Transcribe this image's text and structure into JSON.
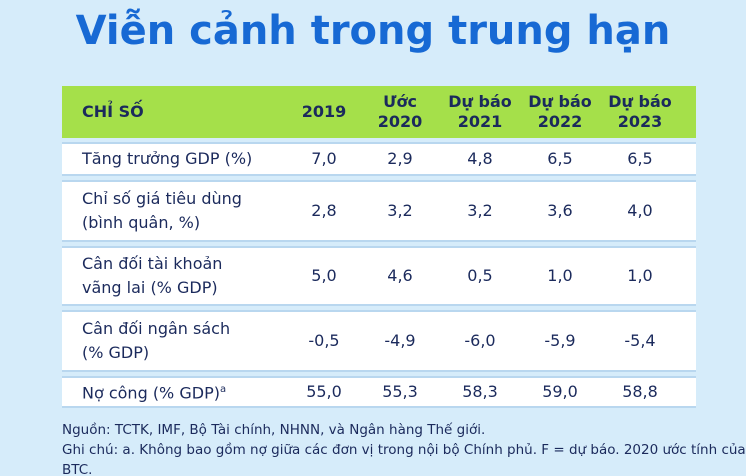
{
  "title": "Viễn cảnh trong trung hạn",
  "table": {
    "header": [
      [
        "CHỈ SỐ"
      ],
      [
        "2019"
      ],
      [
        "Ước",
        "2020"
      ],
      [
        "Dự báo",
        "2021"
      ],
      [
        "Dự báo",
        "2022"
      ],
      [
        "Dự báo",
        "2023"
      ]
    ],
    "rows": [
      {
        "label": [
          "Tăng trưởng GDP (%)"
        ],
        "values": [
          "7,0",
          "2,9",
          "4,8",
          "6,5",
          "6,5"
        ]
      },
      {
        "label": [
          "Chỉ số giá tiêu dùng",
          "(bình quân, %)"
        ],
        "values": [
          "2,8",
          "3,2",
          "3,2",
          "3,6",
          "4,0"
        ]
      },
      {
        "label": [
          "Cân đối tài khoản",
          "vãng lai (% GDP)"
        ],
        "values": [
          "5,0",
          "4,6",
          "0,5",
          "1,0",
          "1,0"
        ]
      },
      {
        "label": [
          "Cân đối ngân sách",
          "(% GDP)"
        ],
        "values": [
          "-0,5",
          "-4,9",
          "-6,0",
          "-5,9",
          "-5,4"
        ]
      },
      {
        "label": [
          "Nợ công (% GDP)"
        ],
        "note_mark": "a",
        "values": [
          "55,0",
          "55,3",
          "58,3",
          "59,0",
          "58,8"
        ]
      }
    ]
  },
  "notes": [
    "Nguồn: TCTK, IMF, Bộ Tài chính, NHNN, và Ngân hàng Thế giới.",
    "Ghi chú: a. Không bao gồm nợ giữa các đơn vị trong nội bộ Chính phủ. F = dự báo. 2020 ước tính của BTC."
  ]
}
